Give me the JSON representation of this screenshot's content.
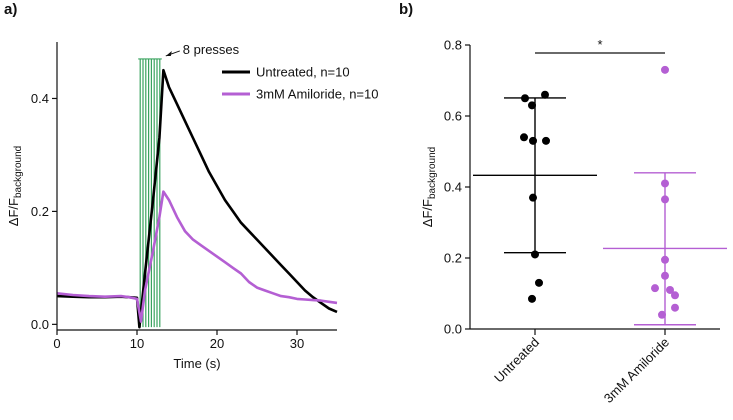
{
  "figure": {
    "panel_a_label": "a)",
    "panel_b_label": "b)"
  },
  "chart_data": [
    {
      "type": "line",
      "panel": "a)",
      "title": "",
      "xlabel": "Time (s)",
      "ylabel_main": "ΔF/F",
      "ylabel_sub": "background",
      "xlim": [
        0,
        35
      ],
      "ylim": [
        -0.01,
        0.5
      ],
      "xticks": [
        0,
        10,
        20,
        30
      ],
      "xtick_labels": [
        "0",
        "10",
        "20",
        "30"
      ],
      "yticks": [
        0.0,
        0.2,
        0.4
      ],
      "ytick_labels": [
        "0.0",
        "0.2",
        "0.4"
      ],
      "presses": {
        "annotation": "8 presses",
        "count": 8,
        "times": [
          10.4,
          10.75,
          11.1,
          11.45,
          11.8,
          12.15,
          12.5,
          12.85
        ],
        "color": "#3aa35f"
      },
      "series": [
        {
          "name": "Untreated, n=10",
          "color": "#000000",
          "x": [
            0,
            2,
            4,
            6,
            8,
            9,
            10,
            10.3,
            11,
            12,
            12.8,
            13.3,
            14,
            15,
            16,
            17,
            18,
            19,
            20,
            21,
            22,
            23,
            24,
            25,
            26,
            27,
            28,
            29,
            30,
            31,
            32,
            33,
            34,
            35
          ],
          "values": [
            0.05,
            0.049,
            0.048,
            0.048,
            0.049,
            0.048,
            0.047,
            -0.005,
            0.09,
            0.22,
            0.33,
            0.45,
            0.42,
            0.39,
            0.36,
            0.33,
            0.3,
            0.27,
            0.245,
            0.22,
            0.2,
            0.18,
            0.165,
            0.15,
            0.135,
            0.12,
            0.105,
            0.09,
            0.075,
            0.06,
            0.048,
            0.038,
            0.028,
            0.022
          ]
        },
        {
          "name": "3mM Amiloride, n=10",
          "color": "#b45fd3",
          "x": [
            0,
            2,
            4,
            6,
            8,
            9,
            10,
            10.5,
            11,
            12,
            12.8,
            13.3,
            14,
            15,
            16,
            17,
            18,
            19,
            20,
            21,
            22,
            23,
            24,
            25,
            26,
            27,
            28,
            29,
            30,
            31,
            32,
            33,
            34,
            35
          ],
          "values": [
            0.055,
            0.052,
            0.05,
            0.049,
            0.05,
            0.048,
            0.045,
            0.005,
            0.06,
            0.13,
            0.19,
            0.235,
            0.22,
            0.19,
            0.165,
            0.15,
            0.14,
            0.13,
            0.12,
            0.11,
            0.1,
            0.09,
            0.075,
            0.065,
            0.06,
            0.055,
            0.05,
            0.048,
            0.045,
            0.044,
            0.043,
            0.042,
            0.04,
            0.038
          ]
        }
      ],
      "legend": "top-right"
    },
    {
      "type": "scatter",
      "panel": "b)",
      "title": "",
      "xlabel": "",
      "ylabel_main": "ΔF/F",
      "ylabel_sub": "background",
      "ylim": [
        0,
        0.8
      ],
      "yticks": [
        0.0,
        0.2,
        0.4,
        0.6,
        0.8
      ],
      "ytick_labels": [
        "0.0",
        "0.2",
        "0.4",
        "0.6",
        "0.8"
      ],
      "categories": [
        "Untreated",
        "3mM Amiloride"
      ],
      "significance": "*",
      "groups": [
        {
          "name": "Untreated",
          "color": "#000000",
          "points": [
            0.66,
            0.65,
            0.63,
            0.54,
            0.53,
            0.53,
            0.37,
            0.21,
            0.13,
            0.085
          ],
          "mean": 0.433,
          "sd_low": 0.215,
          "sd_high": 0.651
        },
        {
          "name": "3mM Amiloride",
          "color": "#b45fd3",
          "points": [
            0.73,
            0.41,
            0.365,
            0.195,
            0.15,
            0.115,
            0.11,
            0.095,
            0.06,
            0.04
          ],
          "mean": 0.227,
          "sd_low": 0.012,
          "sd_high": 0.44
        }
      ]
    }
  ]
}
